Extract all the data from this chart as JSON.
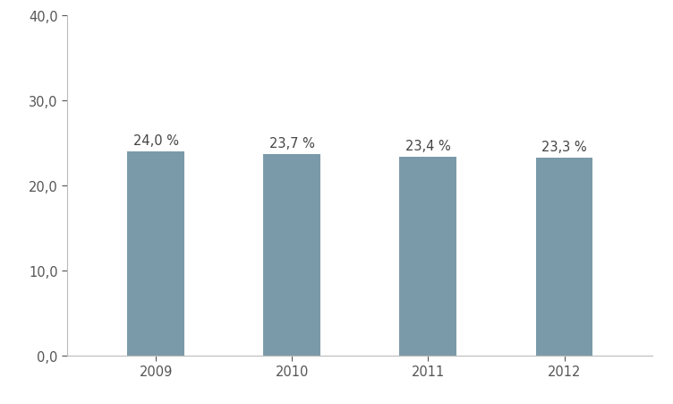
{
  "categories": [
    "2009",
    "2010",
    "2011",
    "2012"
  ],
  "values": [
    24.0,
    23.7,
    23.4,
    23.3
  ],
  "labels": [
    "24,0 %",
    "23,7 %",
    "23,4 %",
    "23,3 %"
  ],
  "bar_color": "#7a9aaa",
  "ylim": [
    0,
    40
  ],
  "yticks": [
    0.0,
    10.0,
    20.0,
    30.0,
    40.0
  ],
  "ytick_labels": [
    "0,0",
    "10,0",
    "20,0",
    "30,0",
    "40,0"
  ],
  "background_color": "#ffffff",
  "bar_width": 0.42,
  "label_fontsize": 10.5,
  "tick_fontsize": 10.5,
  "tick_color": "#555555",
  "spine_color": "#bbbbbb",
  "label_color": "#444444"
}
